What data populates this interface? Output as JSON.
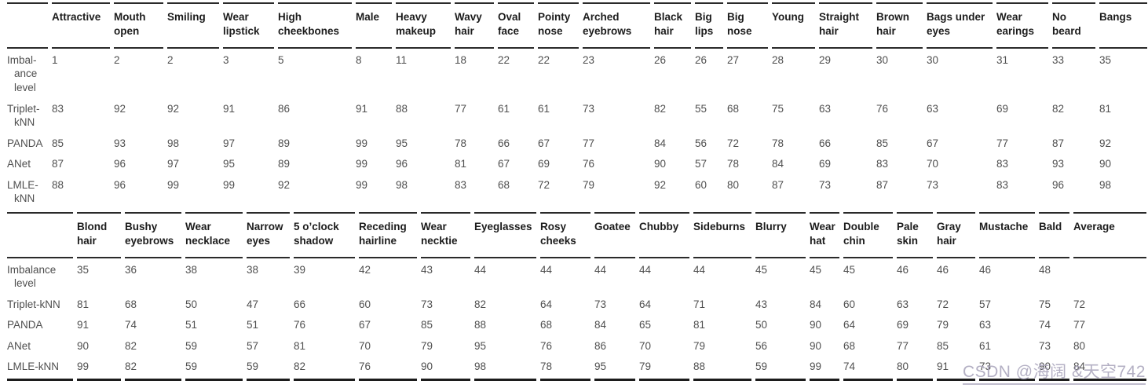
{
  "watermark": {
    "text": "CSDN @海阔 &天空742",
    "color": "#aaa5bc"
  },
  "tables": [
    {
      "name": "attribute-results-part-1",
      "corner_label": "",
      "columns": [
        "Attractive",
        "Mouth open",
        "Smiling",
        "Wear lipstick",
        "High cheekbones",
        "Male",
        "Heavy makeup",
        "Wavy hair",
        "Oval face",
        "Pointy nose",
        "Arched eyebrows",
        "Black hair",
        "Big lips",
        "Big nose",
        "Young",
        "Straight hair",
        "Brown hair",
        "Bags under eyes",
        "Wear earings",
        "No beard",
        "Bangs"
      ],
      "rows": [
        {
          "label": "Imbal- ance level",
          "values": [
            "1",
            "2",
            "2",
            "3",
            "5",
            "8",
            "11",
            "18",
            "22",
            "22",
            "23",
            "26",
            "26",
            "27",
            "28",
            "29",
            "30",
            "30",
            "31",
            "33",
            "35"
          ]
        },
        {
          "label": "Triplet- kNN",
          "values": [
            "83",
            "92",
            "92",
            "91",
            "86",
            "91",
            "88",
            "77",
            "61",
            "61",
            "73",
            "82",
            "55",
            "68",
            "75",
            "63",
            "76",
            "63",
            "69",
            "82",
            "81"
          ]
        },
        {
          "label": "PANDA",
          "values": [
            "85",
            "93",
            "98",
            "97",
            "89",
            "99",
            "95",
            "78",
            "66",
            "67",
            "77",
            "84",
            "56",
            "72",
            "78",
            "66",
            "85",
            "67",
            "77",
            "87",
            "92"
          ]
        },
        {
          "label": "ANet",
          "values": [
            "87",
            "96",
            "97",
            "95",
            "89",
            "99",
            "96",
            "81",
            "67",
            "69",
            "76",
            "90",
            "57",
            "78",
            "84",
            "69",
            "83",
            "70",
            "83",
            "93",
            "90"
          ]
        },
        {
          "label": "LMLE- kNN",
          "values": [
            "88",
            "96",
            "99",
            "99",
            "92",
            "99",
            "98",
            "83",
            "68",
            "72",
            "79",
            "92",
            "60",
            "80",
            "87",
            "73",
            "87",
            "73",
            "83",
            "96",
            "98"
          ]
        }
      ]
    },
    {
      "name": "attribute-results-part-2",
      "corner_label": "",
      "columns": [
        "Blond hair",
        "Bushy eyebrows",
        "Wear necklace",
        "Narrow eyes",
        "5 o’clock shadow",
        "Receding hairline",
        "Wear necktie",
        "Eyeglasses",
        "Rosy cheeks",
        "Goatee",
        "Chubby",
        "Sideburns",
        "Blurry",
        "Wear hat",
        "Double chin",
        "Pale skin",
        "Gray hair",
        "Mustache",
        "Bald",
        "Average"
      ],
      "rows": [
        {
          "label": "Imbalance level",
          "values": [
            "35",
            "36",
            "38",
            "38",
            "39",
            "42",
            "43",
            "44",
            "44",
            "44",
            "44",
            "44",
            "45",
            "45",
            "45",
            "46",
            "46",
            "46",
            "48",
            ""
          ]
        },
        {
          "label": "Triplet-kNN",
          "values": [
            "81",
            "68",
            "50",
            "47",
            "66",
            "60",
            "73",
            "82",
            "64",
            "73",
            "64",
            "71",
            "43",
            "84",
            "60",
            "63",
            "72",
            "57",
            "75",
            "72"
          ]
        },
        {
          "label": "PANDA",
          "values": [
            "91",
            "74",
            "51",
            "51",
            "76",
            "67",
            "85",
            "88",
            "68",
            "84",
            "65",
            "81",
            "50",
            "90",
            "64",
            "69",
            "79",
            "63",
            "74",
            "77"
          ]
        },
        {
          "label": "ANet",
          "values": [
            "90",
            "82",
            "59",
            "57",
            "81",
            "70",
            "79",
            "95",
            "76",
            "86",
            "70",
            "79",
            "56",
            "90",
            "68",
            "77",
            "85",
            "61",
            "73",
            "80"
          ]
        },
        {
          "label": "LMLE-kNN",
          "values": [
            "99",
            "82",
            "59",
            "59",
            "82",
            "76",
            "90",
            "98",
            "78",
            "95",
            "79",
            "88",
            "59",
            "99",
            "74",
            "80",
            "91",
            "73",
            "90",
            "84"
          ]
        }
      ]
    }
  ]
}
